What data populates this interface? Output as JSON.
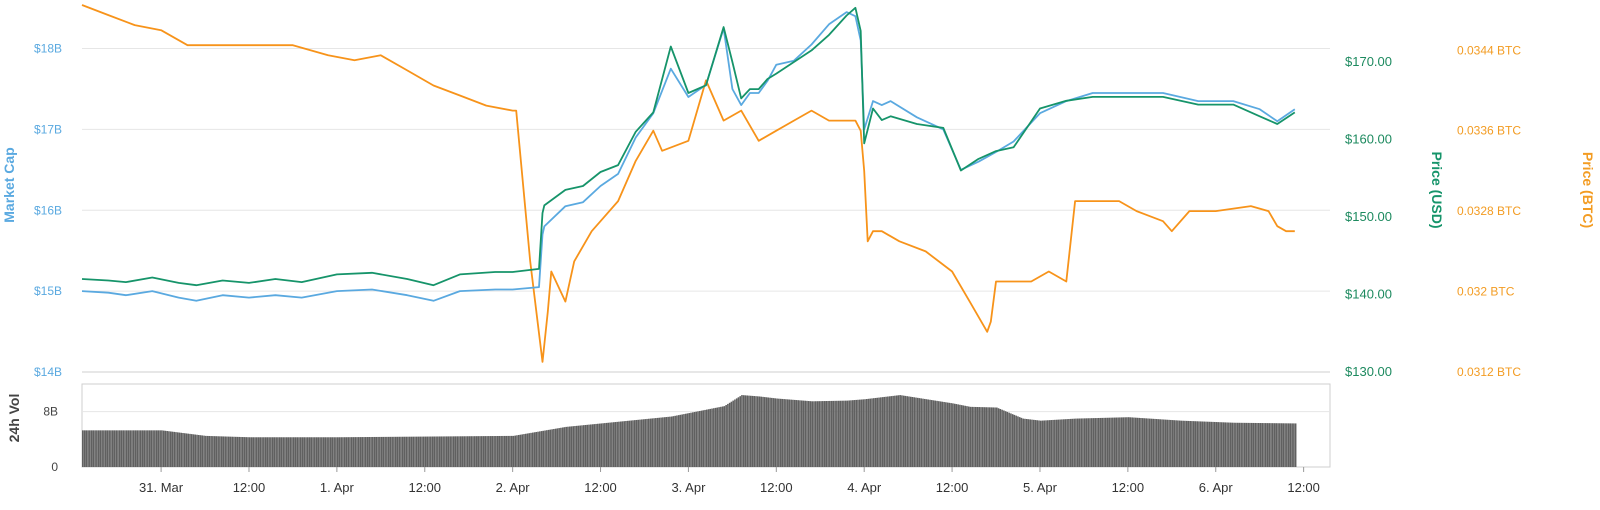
{
  "chart_data": {
    "type": "line",
    "x_tick_labels": [
      "31. Mar",
      "12:00",
      "1. Apr",
      "12:00",
      "2. Apr",
      "12:00",
      "3. Apr",
      "12:00",
      "4. Apr",
      "12:00",
      "5. Apr",
      "12:00",
      "6. Apr",
      "12:00"
    ],
    "axes": {
      "market_cap": {
        "title": "Market Cap",
        "tick_labels": [
          "$14B",
          "$15B",
          "$16B",
          "$17B",
          "$18B"
        ],
        "range": [
          14,
          18.6
        ],
        "unit": "$B"
      },
      "price_usd": {
        "title": "Price (USD)",
        "tick_labels": [
          "$130.00",
          "$140.00",
          "$150.00",
          "$160.00",
          "$170.00"
        ],
        "range": [
          130,
          178
        ]
      },
      "price_btc": {
        "title": "Price (BTC)",
        "tick_labels": [
          "0.0312 BTC",
          "0.032 BTC",
          "0.0328 BTC",
          "0.0336 BTC",
          "0.0344 BTC"
        ],
        "range": [
          0.0312,
          0.0349
        ]
      },
      "volume": {
        "title": "24h Vol",
        "tick_labels": [
          "0",
          "8B"
        ],
        "range": [
          0,
          12
        ],
        "unit": "B"
      }
    },
    "x_domain_days": [
      -0.45,
      6.65
    ],
    "series": [
      {
        "key": "market_cap",
        "color": "#5aa9e0",
        "x": [
          -0.45,
          -0.3,
          -0.2,
          -0.05,
          0.1,
          0.2,
          0.35,
          0.5,
          0.65,
          0.8,
          1.0,
          1.2,
          1.4,
          1.55,
          1.7,
          1.9,
          2.0,
          2.15,
          2.17,
          2.18,
          2.3,
          2.4,
          2.5,
          2.6,
          2.7,
          2.8,
          2.9,
          3.0,
          3.1,
          3.2,
          3.25,
          3.3,
          3.35,
          3.4,
          3.45,
          3.5,
          3.6,
          3.7,
          3.8,
          3.9,
          3.95,
          3.98,
          4.0,
          4.05,
          4.1,
          4.15,
          4.3,
          4.45,
          4.55,
          4.65,
          4.75,
          4.85,
          5.0,
          5.15,
          5.3,
          5.5,
          5.7,
          5.9,
          6.1,
          6.25,
          6.35,
          6.45
        ],
        "y": [
          15.0,
          14.98,
          14.95,
          15.0,
          14.92,
          14.88,
          14.95,
          14.92,
          14.95,
          14.92,
          15.0,
          15.02,
          14.95,
          14.88,
          15.0,
          15.02,
          15.02,
          15.05,
          15.7,
          15.8,
          16.05,
          16.1,
          16.3,
          16.45,
          16.9,
          17.2,
          17.75,
          17.4,
          17.55,
          18.25,
          17.5,
          17.3,
          17.45,
          17.45,
          17.6,
          17.8,
          17.85,
          18.05,
          18.3,
          18.45,
          18.4,
          18.1,
          17.0,
          17.35,
          17.3,
          17.35,
          17.15,
          17.0,
          16.5,
          16.6,
          16.72,
          16.85,
          17.2,
          17.35,
          17.45,
          17.45,
          17.45,
          17.35,
          17.35,
          17.25,
          17.1,
          17.25
        ]
      },
      {
        "key": "price_usd",
        "color": "#16946a",
        "x": [
          -0.45,
          -0.3,
          -0.2,
          -0.05,
          0.1,
          0.2,
          0.35,
          0.5,
          0.65,
          0.8,
          1.0,
          1.2,
          1.4,
          1.55,
          1.7,
          1.9,
          2.0,
          2.15,
          2.17,
          2.18,
          2.3,
          2.4,
          2.5,
          2.6,
          2.7,
          2.8,
          2.9,
          3.0,
          3.1,
          3.2,
          3.25,
          3.3,
          3.35,
          3.4,
          3.45,
          3.5,
          3.6,
          3.7,
          3.8,
          3.9,
          3.95,
          3.98,
          4.0,
          4.05,
          4.1,
          4.15,
          4.3,
          4.45,
          4.55,
          4.65,
          4.75,
          4.85,
          5.0,
          5.15,
          5.3,
          5.5,
          5.7,
          5.9,
          6.1,
          6.25,
          6.35,
          6.45
        ],
        "y": [
          142.0,
          141.8,
          141.6,
          142.2,
          141.5,
          141.2,
          141.8,
          141.5,
          142.0,
          141.6,
          142.6,
          142.8,
          142.0,
          141.2,
          142.6,
          142.9,
          142.9,
          143.3,
          150.5,
          151.5,
          153.5,
          154.0,
          155.8,
          156.7,
          161.0,
          163.5,
          172.0,
          166.0,
          167.0,
          174.5,
          170.0,
          165.3,
          166.5,
          166.5,
          167.8,
          168.5,
          170.0,
          171.5,
          173.5,
          176.0,
          177.0,
          174.0,
          159.5,
          164.0,
          162.5,
          163.0,
          162.0,
          161.5,
          156.0,
          157.5,
          158.5,
          159.0,
          164.0,
          165.0,
          165.5,
          165.5,
          165.5,
          164.5,
          164.5,
          163.0,
          162.0,
          163.5
        ]
      },
      {
        "key": "price_btc",
        "color": "#f7931a",
        "x": [
          -0.45,
          -0.3,
          -0.15,
          0.0,
          0.15,
          0.25,
          0.45,
          0.6,
          0.75,
          0.95,
          1.1,
          1.25,
          1.4,
          1.55,
          1.7,
          1.85,
          2.0,
          2.02,
          2.1,
          2.17,
          2.2,
          2.22,
          2.3,
          2.35,
          2.45,
          2.5,
          2.6,
          2.7,
          2.8,
          2.85,
          3.0,
          3.1,
          3.2,
          3.3,
          3.4,
          3.5,
          3.6,
          3.7,
          3.8,
          3.95,
          3.98,
          4.0,
          4.02,
          4.05,
          4.1,
          4.2,
          4.35,
          4.5,
          4.6,
          4.7,
          4.72,
          4.75,
          4.85,
          4.95,
          5.05,
          5.15,
          5.2,
          5.3,
          5.45,
          5.55,
          5.7,
          5.75,
          5.85,
          6.0,
          6.2,
          6.3,
          6.35,
          6.4,
          6.45
        ],
        "y": [
          0.03485,
          0.03475,
          0.03465,
          0.0346,
          0.03445,
          0.03445,
          0.03445,
          0.03445,
          0.03445,
          0.03435,
          0.0343,
          0.03435,
          0.0342,
          0.03405,
          0.03395,
          0.03385,
          0.0338,
          0.0338,
          0.0323,
          0.0313,
          0.0318,
          0.0322,
          0.0319,
          0.0323,
          0.0326,
          0.0327,
          0.0329,
          0.0333,
          0.0336,
          0.0334,
          0.0335,
          0.0341,
          0.0337,
          0.0338,
          0.0335,
          0.0336,
          0.0337,
          0.0338,
          0.0337,
          0.0337,
          0.0336,
          0.0332,
          0.0325,
          0.0326,
          0.0326,
          0.0325,
          0.0324,
          0.0322,
          0.0319,
          0.0316,
          0.0317,
          0.0321,
          0.0321,
          0.0321,
          0.0322,
          0.0321,
          0.0329,
          0.0329,
          0.0329,
          0.0328,
          0.0327,
          0.0326,
          0.0328,
          0.0328,
          0.03285,
          0.0328,
          0.03265,
          0.0326,
          0.0326
        ]
      }
    ],
    "volume": {
      "color": "#606060",
      "x": [
        -0.45,
        0.0,
        0.25,
        0.5,
        1.0,
        1.5,
        2.0,
        2.3,
        2.7,
        2.9,
        3.0,
        3.2,
        3.3,
        3.4,
        3.5,
        3.7,
        3.9,
        4.0,
        4.2,
        4.5,
        4.6,
        4.75,
        4.9,
        5.0,
        5.2,
        5.5,
        5.8,
        6.1,
        6.45
      ],
      "y": [
        5.3,
        5.3,
        4.5,
        4.3,
        4.3,
        4.4,
        4.5,
        5.8,
        6.8,
        7.3,
        7.8,
        8.8,
        10.4,
        10.2,
        9.9,
        9.5,
        9.6,
        9.8,
        10.4,
        9.2,
        8.7,
        8.6,
        7.0,
        6.7,
        7.0,
        7.2,
        6.7,
        6.4,
        6.3
      ]
    }
  }
}
